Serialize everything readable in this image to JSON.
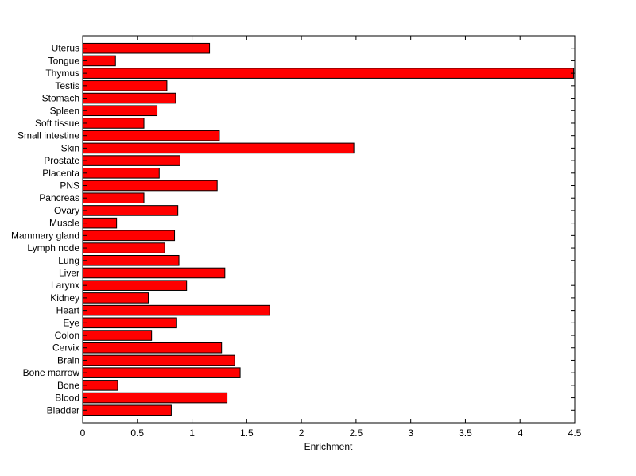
{
  "chart_data": {
    "type": "bar",
    "orientation": "horizontal",
    "title": "",
    "xlabel": "Enrichment",
    "ylabel": "",
    "xlim": [
      0,
      4.5
    ],
    "xticks": [
      "0",
      "0.5",
      "1",
      "1.5",
      "2",
      "2.5",
      "3",
      "3.5",
      "4",
      "4.5"
    ],
    "grid": false,
    "bar_color": "#ff0000",
    "edge_color": "#000000",
    "categories": [
      "Bladder",
      "Blood",
      "Bone",
      "Bone marrow",
      "Brain",
      "Cervix",
      "Colon",
      "Eye",
      "Heart",
      "Kidney",
      "Larynx",
      "Liver",
      "Lung",
      "Lymph node",
      "Mammary gland",
      "Muscle",
      "Ovary",
      "Pancreas",
      "PNS",
      "Placenta",
      "Prostate",
      "Skin",
      "Small intestine",
      "Soft tissue",
      "Spleen",
      "Stomach",
      "Testis",
      "Thymus",
      "Tongue",
      "Uterus"
    ],
    "values": [
      0.81,
      1.32,
      0.32,
      1.44,
      1.39,
      1.27,
      0.63,
      0.86,
      1.71,
      0.6,
      0.95,
      1.3,
      0.88,
      0.75,
      0.84,
      0.31,
      0.87,
      0.56,
      1.23,
      0.7,
      0.89,
      2.48,
      1.25,
      0.56,
      0.68,
      0.85,
      0.77,
      4.49,
      0.3,
      1.16
    ]
  }
}
